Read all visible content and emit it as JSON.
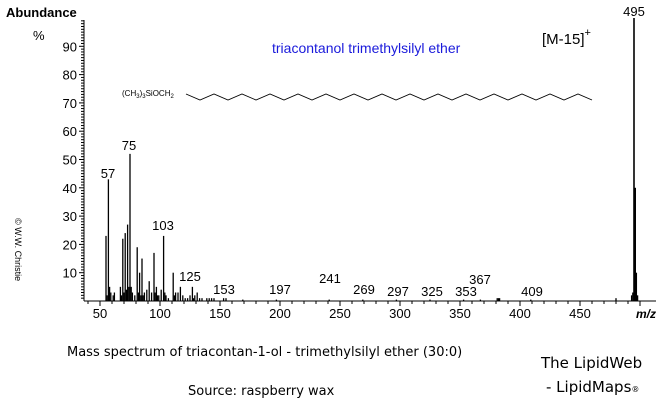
{
  "chart_data": {
    "type": "bar",
    "subtype": "mass-spectrum",
    "title": "triacontanol trimethylsilyl ether",
    "xlabel": "m/z",
    "ylabel": "Abundance",
    "ylabel_unit": "%",
    "xlim": [
      40,
      510
    ],
    "ylim": [
      0,
      100
    ],
    "x_ticks": [
      50,
      100,
      150,
      200,
      250,
      300,
      350,
      400,
      450
    ],
    "y_ticks": [
      10,
      20,
      30,
      40,
      50,
      60,
      70,
      80,
      90
    ],
    "grid": false,
    "structure_label": "(CH3)3SiOCH2",
    "annotation": "[M-15]+",
    "peak_labels": [
      {
        "mz": 57,
        "label": "57",
        "y": 44
      },
      {
        "mz": 75,
        "label": "75",
        "y": 55
      },
      {
        "mz": 103,
        "label": "103",
        "y": 26
      },
      {
        "mz": 125,
        "label": "125",
        "y": 9
      },
      {
        "mz": 153,
        "label": "153",
        "y": 4
      },
      {
        "mz": 197,
        "label": "197",
        "y": 4
      },
      {
        "mz": 241,
        "label": "241",
        "y": 7
      },
      {
        "mz": 269,
        "label": "269",
        "y": 2
      },
      {
        "mz": 297,
        "label": "297",
        "y": 1
      },
      {
        "mz": 325,
        "label": "325",
        "y": 1
      },
      {
        "mz": 353,
        "label": "353",
        "y": 1
      },
      {
        "mz": 367,
        "label": "367",
        "y": 7
      },
      {
        "mz": 409,
        "label": "409",
        "y": 1
      },
      {
        "mz": 495,
        "label": "495",
        "y": 100
      }
    ],
    "peaks": [
      [
        55,
        23
      ],
      [
        56,
        2
      ],
      [
        57,
        43
      ],
      [
        58,
        5
      ],
      [
        59,
        3
      ],
      [
        61,
        2
      ],
      [
        62,
        3
      ],
      [
        67,
        5
      ],
      [
        68,
        2
      ],
      [
        69,
        22
      ],
      [
        70,
        3
      ],
      [
        71,
        24
      ],
      [
        72,
        4
      ],
      [
        73,
        27
      ],
      [
        74,
        5
      ],
      [
        75,
        52
      ],
      [
        76,
        5
      ],
      [
        77,
        3
      ],
      [
        79,
        2
      ],
      [
        81,
        19
      ],
      [
        82,
        3
      ],
      [
        83,
        10
      ],
      [
        84,
        2
      ],
      [
        85,
        15
      ],
      [
        86,
        2
      ],
      [
        87,
        3
      ],
      [
        89,
        4
      ],
      [
        91,
        7
      ],
      [
        93,
        3
      ],
      [
        95,
        17
      ],
      [
        96,
        3
      ],
      [
        97,
        5
      ],
      [
        98,
        2
      ],
      [
        99,
        2
      ],
      [
        101,
        4
      ],
      [
        103,
        23
      ],
      [
        104,
        3
      ],
      [
        105,
        2
      ],
      [
        107,
        1
      ],
      [
        111,
        10
      ],
      [
        112,
        2
      ],
      [
        113,
        3
      ],
      [
        115,
        3
      ],
      [
        117,
        5
      ],
      [
        119,
        2
      ],
      [
        121,
        1
      ],
      [
        123,
        1
      ],
      [
        125,
        2
      ],
      [
        127,
        5
      ],
      [
        128,
        1
      ],
      [
        129,
        2
      ],
      [
        131,
        3
      ],
      [
        133,
        1
      ],
      [
        135,
        1
      ],
      [
        139,
        1
      ],
      [
        141,
        1
      ],
      [
        143,
        1
      ],
      [
        145,
        1
      ],
      [
        153,
        1
      ],
      [
        155,
        1
      ],
      [
        169,
        0.5
      ],
      [
        197,
        0.5
      ],
      [
        241,
        0.5
      ],
      [
        269,
        0.5
      ],
      [
        297,
        0.5
      ],
      [
        325,
        0.5
      ],
      [
        353,
        0.5
      ],
      [
        367,
        0.5
      ],
      [
        381,
        1
      ],
      [
        382,
        1
      ],
      [
        383,
        1
      ],
      [
        409,
        0.5
      ],
      [
        480,
        1
      ],
      [
        493,
        2
      ],
      [
        494,
        3
      ],
      [
        495,
        100
      ],
      [
        496,
        40
      ],
      [
        497,
        10
      ],
      [
        498,
        2
      ]
    ]
  },
  "labels": {
    "abundance": "Abundance",
    "percent": "%",
    "xaxis": "m/z",
    "title": "triacontanol trimethylsilyl ether",
    "annotation": "[M-15]",
    "annotation_sup": "+",
    "copyright": "© W.W. Christie"
  },
  "captions": {
    "line1": "Mass spectrum of triacontan-1-ol - trimethylsilyl ether (30:0)",
    "line2": "Source: raspberry wax"
  },
  "brand": {
    "line1": "The LipidWeb",
    "line2": "- LipidMaps",
    "reg": "®"
  },
  "colors": {
    "title": "#1a1adb",
    "axis": "#000000",
    "peaks": "#000000"
  }
}
